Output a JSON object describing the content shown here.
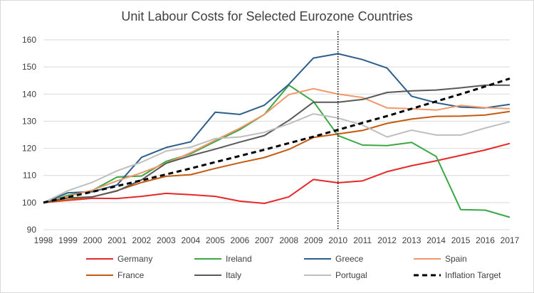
{
  "chart_data": {
    "type": "line",
    "title": "Unit Labour Costs for Selected Eurozone Countries",
    "xlabel": "",
    "ylabel": "",
    "x": [
      "1998",
      "1999",
      "2000",
      "2001",
      "2002",
      "2003",
      "2004",
      "2005",
      "2006",
      "2007",
      "2008",
      "2009",
      "2010",
      "2011",
      "2012",
      "2013",
      "2014",
      "2015",
      "2016",
      "2017"
    ],
    "ylim": [
      90,
      160
    ],
    "yticks": [
      90,
      100,
      110,
      120,
      130,
      140,
      150,
      160
    ],
    "grid": true,
    "legend_position": "bottom",
    "reference_line": {
      "x": "2010",
      "style": "dotted",
      "color": "#000000"
    },
    "series": [
      {
        "name": "Germany",
        "color": "#e8272a",
        "dash": false,
        "values": [
          100,
          100.8,
          101.6,
          101.5,
          102.3,
          103.4,
          102.9,
          102.3,
          100.5,
          99.7,
          102.1,
          108.5,
          107.3,
          108.0,
          111.4,
          113.6,
          115.4,
          117.4,
          119.4,
          121.8
        ]
      },
      {
        "name": "Ireland",
        "color": "#3aa845",
        "dash": false,
        "values": [
          100,
          102.7,
          104.5,
          109.4,
          109.8,
          115.2,
          118.0,
          122.5,
          126.9,
          132.5,
          143.3,
          137.3,
          124.7,
          121.2,
          121.0,
          122.2,
          117.0,
          97.4,
          97.2,
          94.6
        ]
      },
      {
        "name": "Greece",
        "color": "#2e5f8a",
        "dash": false,
        "values": [
          100,
          103.6,
          104.0,
          106.5,
          116.7,
          120.3,
          122.4,
          133.3,
          132.5,
          135.9,
          143.6,
          153.3,
          154.9,
          152.7,
          149.6,
          139.2,
          136.8,
          135.2,
          134.9,
          136.2
        ]
      },
      {
        "name": "Spain",
        "color": "#f0986a",
        "dash": false,
        "values": [
          100,
          102.3,
          104.6,
          108.0,
          111.0,
          114.5,
          118.4,
          123.0,
          127.4,
          132.5,
          139.8,
          142.0,
          140.0,
          138.7,
          134.9,
          134.6,
          134.1,
          135.8,
          135.0,
          134.6
        ]
      },
      {
        "name": "France",
        "color": "#c55a11",
        "dash": false,
        "values": [
          100,
          101.0,
          102.1,
          104.4,
          107.4,
          109.7,
          110.3,
          112.6,
          114.7,
          116.6,
          119.6,
          124.0,
          125.3,
          126.6,
          129.2,
          130.8,
          131.8,
          131.9,
          132.3,
          133.6
        ]
      },
      {
        "name": "Italy",
        "color": "#595959",
        "dash": false,
        "values": [
          100,
          101.7,
          102.1,
          104.3,
          108.4,
          114.5,
          117.3,
          119.7,
          122.3,
          124.7,
          130.3,
          137.0,
          137.0,
          138.0,
          140.6,
          141.2,
          141.5,
          142.3,
          143.3,
          143.3
        ]
      },
      {
        "name": "Portugal",
        "color": "#bfbfbf",
        "dash": false,
        "values": [
          100,
          104.4,
          107.5,
          111.7,
          114.9,
          119.0,
          120.4,
          123.6,
          124.2,
          125.9,
          129.0,
          132.7,
          131.2,
          128.6,
          124.2,
          126.7,
          124.9,
          124.9,
          127.5,
          129.8
        ]
      },
      {
        "name": "Inflation Target",
        "color": "#000000",
        "dash": true,
        "values": [
          100,
          102.0,
          104.0,
          106.1,
          108.2,
          110.4,
          112.6,
          114.9,
          117.2,
          119.5,
          121.9,
          124.3,
          126.8,
          129.4,
          131.9,
          134.6,
          137.3,
          140.0,
          142.8,
          145.7
        ]
      }
    ]
  }
}
